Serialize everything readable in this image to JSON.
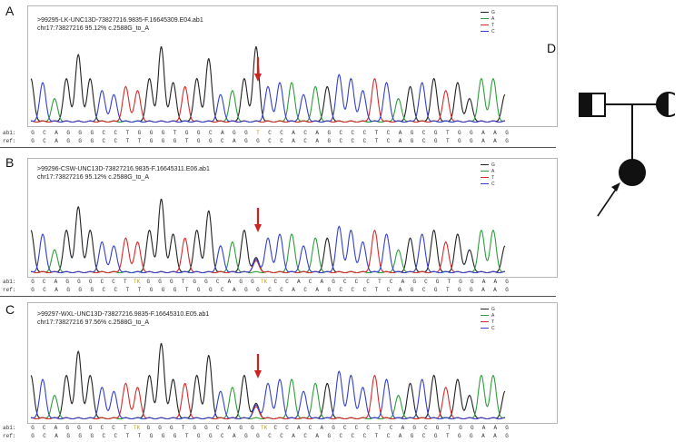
{
  "panels": [
    {
      "letter": "A",
      "header_line1": ">99295-LK-UNC13D-73827216.9835-F.16645309.E04.ab1",
      "header_line2": "chr17:73827216 95.12%  c.2588G_to_A",
      "ab1_label": "ab1:",
      "ref_label": "ref:",
      "ab1_seq": [
        "G",
        "C",
        "A",
        "G",
        "G",
        "G",
        "C",
        "C",
        "T",
        "G",
        "G",
        "G",
        "T",
        "G",
        "G",
        "C",
        "A",
        "G",
        "G",
        "T",
        "C",
        "C",
        "A",
        "C",
        "A",
        "G",
        "C",
        "C",
        "C",
        "T",
        "C",
        "A",
        "G",
        "C",
        "G",
        "T",
        "G",
        "G",
        "A",
        "A",
        "G"
      ],
      "ref_seq": [
        "G",
        "C",
        "A",
        "G",
        "G",
        "G",
        "C",
        "C",
        "T",
        "T",
        "G",
        "G",
        "G",
        "T",
        "G",
        "G",
        "C",
        "A",
        "G",
        "G",
        "C",
        "C",
        "A",
        "C",
        "A",
        "G",
        "C",
        "C",
        "C",
        "T",
        "C",
        "A",
        "G",
        "C",
        "G",
        "T",
        "G",
        "G",
        "A",
        "A",
        "G"
      ],
      "highlight_ab1": [
        19
      ]
    },
    {
      "letter": "B",
      "header_line1": ">99296-CSW-UNC13D-73827216.9835-F.16645311.E06.ab1",
      "header_line2": "chr17:73827216 95.12%  c.2588G_to_A",
      "ab1_label": "ab1:",
      "ref_label": "ref:",
      "ab1_seq": [
        "G",
        "C",
        "A",
        "G",
        "G",
        "G",
        "C",
        "C",
        "T",
        "TK",
        "G",
        "G",
        "G",
        "T",
        "G",
        "G",
        "C",
        "A",
        "G",
        "G",
        "TK",
        "C",
        "C",
        "A",
        "C",
        "A",
        "G",
        "C",
        "C",
        "C",
        "T",
        "C",
        "A",
        "G",
        "C",
        "G",
        "T",
        "G",
        "G",
        "A",
        "A",
        "G"
      ],
      "ref_seq": [
        "G",
        "C",
        "A",
        "G",
        "G",
        "G",
        "C",
        "C",
        "T",
        "T",
        "G",
        "G",
        "G",
        "T",
        "G",
        "G",
        "C",
        "A",
        "G",
        "G",
        "C",
        "C",
        "A",
        "C",
        "A",
        "G",
        "C",
        "C",
        "C",
        "T",
        "C",
        "A",
        "G",
        "C",
        "G",
        "T",
        "G",
        "G",
        "A",
        "A",
        "G"
      ],
      "highlight_ab1": [
        9,
        20
      ]
    },
    {
      "letter": "C",
      "header_line1": ">99297-WXL-UNC13D-73827216.9835-F.16645310.E05.ab1",
      "header_line2": "chr17:73827216 97.56%  c.2588G_to_A",
      "ab1_label": "ab1:",
      "ref_label": "ref:",
      "ab1_seq": [
        "G",
        "C",
        "A",
        "G",
        "G",
        "G",
        "C",
        "C",
        "T",
        "TK",
        "G",
        "G",
        "G",
        "T",
        "G",
        "G",
        "C",
        "A",
        "G",
        "G",
        "TK",
        "C",
        "C",
        "A",
        "C",
        "A",
        "G",
        "C",
        "C",
        "C",
        "T",
        "C",
        "A",
        "G",
        "C",
        "G",
        "T",
        "G",
        "G",
        "A",
        "A",
        "G"
      ],
      "ref_seq": [
        "G",
        "C",
        "A",
        "G",
        "G",
        "G",
        "C",
        "C",
        "T",
        "T",
        "G",
        "G",
        "G",
        "T",
        "G",
        "G",
        "C",
        "A",
        "G",
        "G",
        "C",
        "C",
        "A",
        "C",
        "A",
        "G",
        "C",
        "C",
        "C",
        "T",
        "C",
        "A",
        "G",
        "C",
        "G",
        "T",
        "G",
        "G",
        "A",
        "A",
        "G"
      ],
      "highlight_ab1": [
        9,
        20
      ]
    }
  ],
  "legend": {
    "entries": [
      {
        "base": "G",
        "color": "#222222"
      },
      {
        "base": "A",
        "color": "#2e9e3a"
      },
      {
        "base": "T",
        "color": "#d62b2b"
      },
      {
        "base": "C",
        "color": "#3440c8"
      }
    ]
  },
  "pedigree": {
    "letter": "D",
    "father": "heterozygous carrier",
    "mother": "heterozygous carrier",
    "proband": "affected"
  },
  "colors": {
    "arrow_red": "#d0231f",
    "box_border": "#b5b5b5"
  }
}
